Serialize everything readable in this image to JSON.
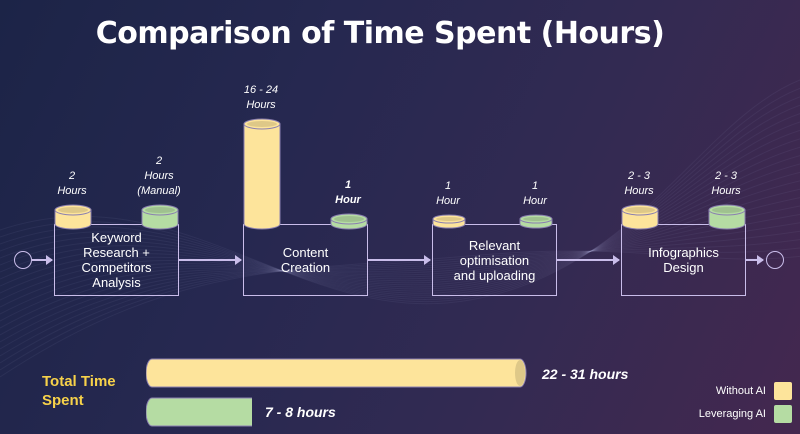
{
  "title": "Comparison of Time Spent (Hours)",
  "colors": {
    "without_ai": "#fde49b",
    "leveraging_ai": "#b5dca3"
  },
  "stages": [
    {
      "name": "Keyword\nResearch +\nCompetitors\nAnalysis",
      "without_label": "2\nHours",
      "with_label": "2\nHours\n(Manual)"
    },
    {
      "name": "Content\nCreation",
      "without_label": "16 - 24\nHours",
      "with_label": "1\nHour"
    },
    {
      "name": "Relevant\noptimisation\nand uploading",
      "without_label": "1\nHour",
      "with_label": "1\nHour"
    },
    {
      "name": "Infographics\nDesign",
      "without_label": "2 - 3\nHours",
      "with_label": "2 - 3\nHours"
    }
  ],
  "totals": {
    "label": "Total Time\nSpent",
    "without_text": "22 - 31 hours",
    "with_text": "7 - 8 hours"
  },
  "legend": [
    {
      "label": "Without AI",
      "color": "#fde49b"
    },
    {
      "label": "Leveraging AI",
      "color": "#b5dca3"
    }
  ],
  "chart_data": {
    "type": "bar",
    "title": "Comparison of Time Spent (Hours)",
    "categories": [
      "Keyword Research + Competitors Analysis",
      "Content Creation",
      "Relevant optimisation and uploading",
      "Infographics Design"
    ],
    "series": [
      {
        "name": "Without AI",
        "values": [
          2,
          20,
          1,
          2.5
        ],
        "labels": [
          "2 Hours",
          "16 - 24 Hours",
          "1 Hour",
          "2 - 3 Hours"
        ]
      },
      {
        "name": "Leveraging AI",
        "values": [
          2,
          1,
          1,
          2.5
        ],
        "labels": [
          "2 Hours (Manual)",
          "1 Hour",
          "1 Hour",
          "2 - 3 Hours"
        ]
      }
    ],
    "totals": [
      {
        "name": "Without AI",
        "range": [
          22,
          31
        ],
        "label": "22 - 31 hours"
      },
      {
        "name": "Leveraging AI",
        "range": [
          7,
          8
        ],
        "label": "7 - 8 hours"
      }
    ],
    "legend_position": "bottom-right"
  }
}
